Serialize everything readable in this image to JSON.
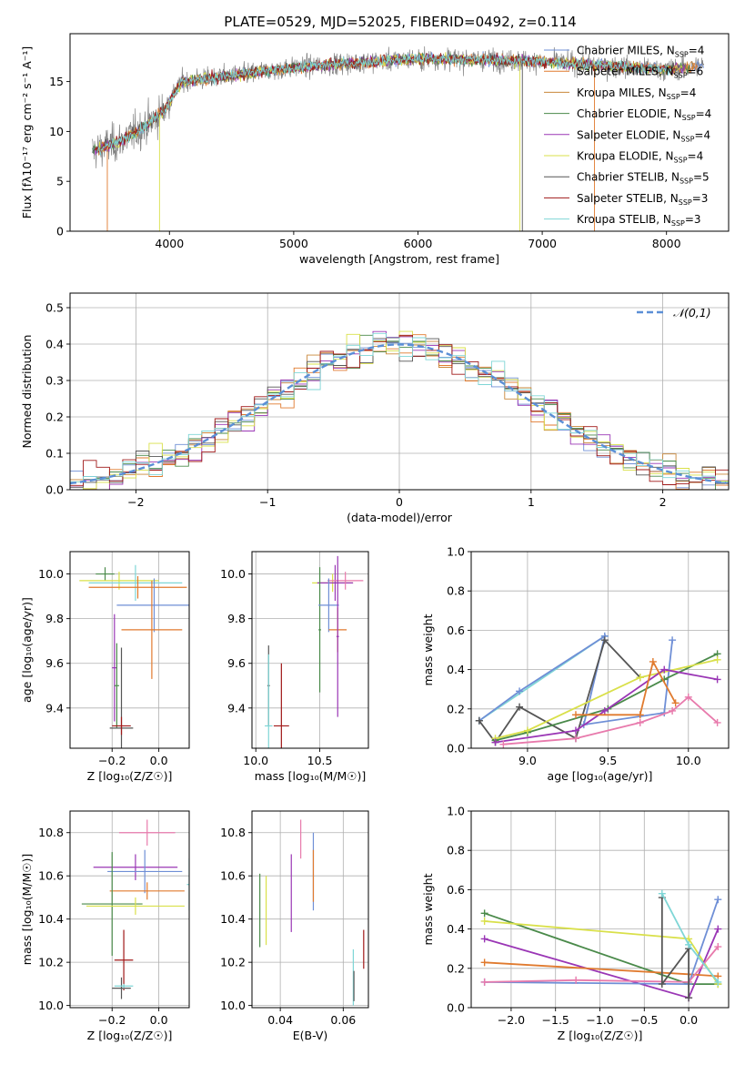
{
  "figure_title": "PLATE=0529, MJD=52025, FIBERID=0492, z=0.114",
  "chart_data": [
    {
      "id": "spectrum",
      "type": "line",
      "xlabel": "wavelength [Angstrom, rest frame]",
      "ylabel": "Flux [fλ10⁻¹⁷ erg cm⁻² s⁻¹ A⁻¹]",
      "xlim": [
        3200,
        8500
      ],
      "ylim": [
        0,
        19.8
      ],
      "xticks": [
        4000,
        5000,
        6000,
        7000,
        8000
      ],
      "yticks": [
        0,
        5,
        10,
        15
      ],
      "grid": false,
      "legend_position": "top-right",
      "series": [
        {
          "name": "Chabrier MILES, NSSP=4",
          "color": "#6f8fd6"
        },
        {
          "name": "Salpeter MILES, NSSP=6",
          "color": "#e07a2e"
        },
        {
          "name": "Kroupa MILES, NSSP=4",
          "color": "#c9873a"
        },
        {
          "name": "Chabrier ELODIE, NSSP=4",
          "color": "#4a8a4a"
        },
        {
          "name": "Salpeter ELODIE, NSSP=4",
          "color": "#9a36b5"
        },
        {
          "name": "Kroupa ELODIE, NSSP=4",
          "color": "#d9e04a"
        },
        {
          "name": "Chabrier STELIB, NSSP=5",
          "color": "#555555"
        },
        {
          "name": "Salpeter STELIB, NSSP=3",
          "color": "#a01818"
        },
        {
          "name": "Kroupa STELIB, NSSP=3",
          "color": "#7fd6d6"
        }
      ],
      "continuum": [
        [
          3380,
          8.0
        ],
        [
          3600,
          9.0
        ],
        [
          3800,
          10.5
        ],
        [
          3950,
          12.0
        ],
        [
          4100,
          15.0
        ],
        [
          4500,
          15.6
        ],
        [
          5000,
          16.4
        ],
        [
          5500,
          16.9
        ],
        [
          6000,
          17.3
        ],
        [
          6500,
          17.2
        ],
        [
          7000,
          17.0
        ],
        [
          7500,
          16.6
        ],
        [
          8000,
          16.2
        ],
        [
          8300,
          16.6
        ]
      ],
      "observed_range": [
        3380,
        8300
      ],
      "observed_color": "#808080"
    },
    {
      "id": "residuals",
      "type": "bar",
      "xlabel": "(data-model)/error",
      "ylabel": "Normed distribution",
      "xlim": [
        -2.5,
        2.5
      ],
      "ylim": [
        0,
        0.54
      ],
      "xticks": [
        -2,
        -1,
        0,
        1,
        2
      ],
      "yticks": [
        0,
        0.1,
        0.2,
        0.3,
        0.4,
        0.5
      ],
      "grid": true,
      "legend_position": "top-right",
      "reference": {
        "name": "𝒩(0,1)",
        "mean": 0,
        "sigma": 1,
        "color": "#5b8fd6"
      },
      "bin_width": 0.1
    },
    {
      "id": "z-age",
      "type": "scatter",
      "xlabel": "Z [log₁₀(Z/Z☉)]",
      "ylabel": "age  [log₁₀(age/yr)]",
      "xlim": [
        -0.38,
        0.13
      ],
      "ylim": [
        9.22,
        10.1
      ],
      "xticks": [
        -0.2,
        0.0
      ],
      "yticks": [
        9.4,
        9.6,
        9.8,
        10.0
      ],
      "grid": true,
      "points": [
        {
          "x": -0.23,
          "y": 10.0,
          "xerr": 0.04,
          "yerr": 0.03,
          "color": "#4a8a4a"
        },
        {
          "x": -0.17,
          "y": 9.97,
          "xerr": 0.17,
          "yerr": 0.04,
          "color": "#d9e04a"
        },
        {
          "x": -0.1,
          "y": 9.96,
          "xerr": 0.2,
          "yerr": 0.08,
          "color": "#7fd6d6"
        },
        {
          "x": -0.09,
          "y": 9.94,
          "xerr": 0.21,
          "yerr": 0.05,
          "color": "#e07a2e"
        },
        {
          "x": -0.02,
          "y": 9.86,
          "xerr": 0.16,
          "yerr": 0.12,
          "color": "#6f8fd6"
        },
        {
          "x": -0.03,
          "y": 9.75,
          "xerr": 0.13,
          "yerr": 0.22,
          "color": "#e07a2e"
        },
        {
          "x": -0.19,
          "y": 9.58,
          "xerr": 0.01,
          "yerr": 0.24,
          "color": "#9a36b5"
        },
        {
          "x": -0.18,
          "y": 9.5,
          "xerr": 0.01,
          "yerr": 0.19,
          "color": "#4a8a4a"
        },
        {
          "x": -0.16,
          "y": 9.31,
          "xerr": 0.05,
          "yerr": 0.36,
          "color": "#555555"
        },
        {
          "x": -0.16,
          "y": 9.32,
          "xerr": 0.04,
          "yerr": 0.04,
          "color": "#a01818"
        }
      ]
    },
    {
      "id": "mass-age",
      "type": "scatter",
      "xlabel": "mass [log₁₀(M/M☉)]",
      "ylabel": "",
      "xlim": [
        9.97,
        10.88
      ],
      "ylim": [
        9.22,
        10.1
      ],
      "xticks": [
        10.0,
        10.5
      ],
      "yticks": [
        9.4,
        9.6,
        9.8,
        10.0
      ],
      "grid": true,
      "points": [
        {
          "x": 10.6,
          "y": 9.96,
          "xerr": 0.16,
          "yerr": 0.04,
          "color": "#d9e04a"
        },
        {
          "x": 10.62,
          "y": 9.96,
          "xerr": 0.14,
          "yerr": 0.08,
          "color": "#9a36b5"
        },
        {
          "x": 10.7,
          "y": 9.97,
          "xerr": 0.14,
          "yerr": 0.04,
          "color": "#e87aac"
        },
        {
          "x": 10.5,
          "y": 9.75,
          "xerr": 0.01,
          "yerr": 0.28,
          "color": "#4a8a4a"
        },
        {
          "x": 10.57,
          "y": 9.86,
          "xerr": 0.08,
          "yerr": 0.12,
          "color": "#6f8fd6"
        },
        {
          "x": 10.64,
          "y": 9.75,
          "xerr": 0.07,
          "yerr": 0.1,
          "color": "#e07a2e"
        },
        {
          "x": 10.1,
          "y": 9.5,
          "xerr": 0.01,
          "yerr": 0.18,
          "color": "#555555"
        },
        {
          "x": 10.1,
          "y": 9.32,
          "xerr": 0.03,
          "yerr": 0.32,
          "color": "#7fd6d6"
        },
        {
          "x": 10.2,
          "y": 9.32,
          "xerr": 0.06,
          "yerr": 0.28,
          "color": "#a01818"
        },
        {
          "x": 10.64,
          "y": 9.72,
          "xerr": 0.01,
          "yerr": 0.36,
          "color": "#9a36b5"
        }
      ]
    },
    {
      "id": "age-weight",
      "type": "line",
      "xlabel": "age  [log₁₀(age/yr)]",
      "ylabel": "mass weight",
      "xlim": [
        8.65,
        10.25
      ],
      "ylim": [
        0.0,
        1.0
      ],
      "xticks": [
        9.0,
        9.5,
        10.0
      ],
      "yticks": [
        0.0,
        0.2,
        0.4,
        0.6,
        0.8,
        1.0
      ],
      "grid": true,
      "series": [
        {
          "color": "#7fd6d6",
          "x": [
            8.7,
            9.48
          ],
          "y": [
            0.14,
            0.57
          ]
        },
        {
          "color": "#6f8fd6",
          "x": [
            8.7,
            8.95,
            9.48,
            9.35,
            9.85,
            9.9
          ],
          "y": [
            0.14,
            0.29,
            0.57,
            0.12,
            0.18,
            0.55
          ]
        },
        {
          "color": "#555555",
          "x": [
            8.7,
            8.8,
            8.95,
            9.3,
            9.48,
            9.7
          ],
          "y": [
            0.14,
            0.03,
            0.21,
            0.05,
            0.55,
            0.36
          ]
        },
        {
          "color": "#4a8a4a",
          "x": [
            8.8,
            9.0,
            9.5,
            9.85,
            10.18
          ],
          "y": [
            0.04,
            0.08,
            0.2,
            0.35,
            0.48
          ]
        },
        {
          "color": "#d9e04a",
          "x": [
            8.8,
            9.0,
            9.7,
            10.18
          ],
          "y": [
            0.05,
            0.09,
            0.36,
            0.45
          ]
        },
        {
          "color": "#9a36b5",
          "x": [
            8.8,
            9.3,
            9.48,
            9.85,
            10.18
          ],
          "y": [
            0.03,
            0.09,
            0.19,
            0.4,
            0.35
          ]
        },
        {
          "color": "#e07a2e",
          "x": [
            9.3,
            9.7,
            9.78,
            9.92
          ],
          "y": [
            0.17,
            0.17,
            0.44,
            0.23
          ]
        },
        {
          "color": "#e87aac",
          "x": [
            8.85,
            9.3,
            9.7,
            9.9,
            10.0,
            10.18
          ],
          "y": [
            0.02,
            0.05,
            0.13,
            0.19,
            0.26,
            0.13
          ]
        }
      ]
    },
    {
      "id": "z-mass",
      "type": "scatter",
      "xlabel": "Z [log₁₀(Z/Z☉)]",
      "ylabel": "mass [log₁₀(M/M☉)]",
      "xlim": [
        -0.38,
        0.13
      ],
      "ylim": [
        9.99,
        10.9
      ],
      "xticks": [
        -0.2,
        0.0
      ],
      "yticks": [
        10.0,
        10.2,
        10.4,
        10.6,
        10.8
      ],
      "grid": true,
      "points": [
        {
          "x": -0.05,
          "y": 10.8,
          "xerr": 0.12,
          "yerr": 0.06,
          "color": "#e87aac"
        },
        {
          "x": -0.1,
          "y": 10.64,
          "xerr": 0.18,
          "yerr": 0.06,
          "color": "#9a36b5"
        },
        {
          "x": -0.06,
          "y": 10.62,
          "xerr": 0.16,
          "yerr": 0.1,
          "color": "#6f8fd6"
        },
        {
          "x": -0.05,
          "y": 10.53,
          "xerr": 0.16,
          "yerr": 0.04,
          "color": "#e07a2e"
        },
        {
          "x": -0.2,
          "y": 10.47,
          "xerr": 0.13,
          "yerr": 0.24,
          "color": "#4a8a4a"
        },
        {
          "x": -0.1,
          "y": 10.46,
          "xerr": 0.21,
          "yerr": 0.04,
          "color": "#d9e04a"
        },
        {
          "x": -0.15,
          "y": 10.21,
          "xerr": 0.04,
          "yerr": 0.14,
          "color": "#a01818"
        },
        {
          "x": -0.16,
          "y": 10.08,
          "xerr": 0.04,
          "yerr": 0.05,
          "color": "#555555"
        },
        {
          "x": -0.15,
          "y": 10.09,
          "xerr": 0.04,
          "yerr": 0.01,
          "color": "#7fd6d6"
        },
        {
          "x": 0.13,
          "y": 10.56,
          "xerr": 0.01,
          "yerr": 0.12,
          "color": "#7fd6d6"
        }
      ]
    },
    {
      "id": "ebv-mass",
      "type": "scatter",
      "xlabel": "E(B-V)",
      "ylabel": "",
      "xlim": [
        0.031,
        0.068
      ],
      "ylim": [
        9.99,
        10.9
      ],
      "xticks": [
        0.04,
        0.06
      ],
      "yticks": [
        10.0,
        10.2,
        10.4,
        10.6,
        10.8
      ],
      "grid": true,
      "points": [
        {
          "x": 0.0335,
          "y": 10.44,
          "xerr": 0.0,
          "yerr": 0.17,
          "color": "#4a8a4a"
        },
        {
          "x": 0.0355,
          "y": 10.44,
          "xerr": 0.0,
          "yerr": 0.16,
          "color": "#d9e04a"
        },
        {
          "x": 0.0435,
          "y": 10.52,
          "xerr": 0.0,
          "yerr": 0.18,
          "color": "#9a36b5"
        },
        {
          "x": 0.0465,
          "y": 10.77,
          "xerr": 0.0,
          "yerr": 0.09,
          "color": "#e87aac"
        },
        {
          "x": 0.0505,
          "y": 10.62,
          "xerr": 0.0,
          "yerr": 0.18,
          "color": "#6f8fd6"
        },
        {
          "x": 0.0505,
          "y": 10.6,
          "xerr": 0.0,
          "yerr": 0.12,
          "color": "#e07a2e"
        },
        {
          "x": 0.0632,
          "y": 10.13,
          "xerr": 0.0,
          "yerr": 0.13,
          "color": "#7fd6d6"
        },
        {
          "x": 0.0634,
          "y": 10.09,
          "xerr": 0.0,
          "yerr": 0.07,
          "color": "#555555"
        },
        {
          "x": 0.0665,
          "y": 10.26,
          "xerr": 0.0,
          "yerr": 0.09,
          "color": "#a01818"
        }
      ]
    },
    {
      "id": "z-weight",
      "type": "line",
      "xlabel": "Z [log₁₀(Z/Z☉)]",
      "ylabel": "mass weight",
      "xlim": [
        -2.45,
        0.45
      ],
      "ylim": [
        0.0,
        1.0
      ],
      "xticks": [
        -2.0,
        -1.5,
        -1.0,
        -0.5,
        0.0
      ],
      "yticks": [
        0.0,
        0.2,
        0.4,
        0.6,
        0.8,
        1.0
      ],
      "grid": true,
      "series": [
        {
          "color": "#4a8a4a",
          "x": [
            -2.3,
            0.0,
            0.33
          ],
          "y": [
            0.48,
            0.12,
            0.12
          ]
        },
        {
          "color": "#d9e04a",
          "x": [
            -2.3,
            0.0,
            0.33
          ],
          "y": [
            0.44,
            0.35,
            0.12
          ]
        },
        {
          "color": "#9a36b5",
          "x": [
            -2.3,
            0.0,
            0.33
          ],
          "y": [
            0.35,
            0.05,
            0.4
          ]
        },
        {
          "color": "#e07a2e",
          "x": [
            -2.3,
            0.0,
            0.33
          ],
          "y": [
            0.23,
            0.17,
            0.16
          ]
        },
        {
          "color": "#6f8fd6",
          "x": [
            -2.3,
            0.0,
            0.33
          ],
          "y": [
            0.13,
            0.12,
            0.55
          ]
        },
        {
          "color": "#e87aac",
          "x": [
            -2.3,
            -1.27,
            0.0,
            0.33
          ],
          "y": [
            0.13,
            0.14,
            0.13,
            0.31
          ]
        },
        {
          "color": "#555555",
          "x": [
            -0.3,
            -0.3,
            0.0,
            0.0
          ],
          "y": [
            0.56,
            0.12,
            0.3,
            0.05
          ]
        },
        {
          "color": "#7fd6d6",
          "x": [
            -0.3,
            0.0,
            0.33
          ],
          "y": [
            0.58,
            0.32,
            0.13
          ]
        }
      ]
    }
  ]
}
